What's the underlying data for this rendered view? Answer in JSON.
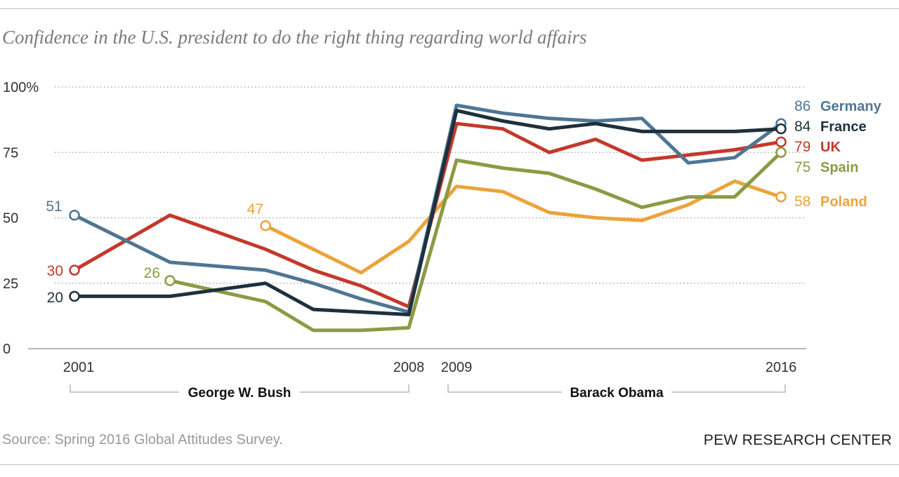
{
  "title": "Confidence in the U.S. president to do the right thing regarding world affairs",
  "source": "Source: Spring 2016 Global Attitudes Survey.",
  "brand": "PEW RESEARCH CENTER",
  "chart_data": {
    "type": "line",
    "title": "Confidence in the U.S. president to do the right thing regarding world affairs",
    "ylim": [
      0,
      100
    ],
    "yticks": [
      0,
      25,
      50,
      75,
      100
    ],
    "ytick_labels": [
      "0",
      "25",
      "50",
      "75",
      "100%"
    ],
    "x_tick_labels": [
      "2001",
      "2008",
      "2009",
      "2016"
    ],
    "grid": true,
    "x": [
      2001,
      2002,
      2003,
      2004,
      2005,
      2006,
      2007,
      2008,
      2009,
      2010,
      2011,
      2012,
      2013,
      2014,
      2015,
      2016
    ],
    "periods": [
      {
        "label": "George W. Bush",
        "start": 2001,
        "end": 2008
      },
      {
        "label": "Barack Obama",
        "start": 2009,
        "end": 2016
      }
    ],
    "series": [
      {
        "name": "Germany",
        "color": "#4f7693",
        "values": [
          51,
          null,
          33,
          null,
          30,
          25,
          19,
          14,
          93,
          90,
          88,
          87,
          88,
          71,
          73,
          86
        ],
        "start_label": "51",
        "end_label": "86"
      },
      {
        "name": "France",
        "color": "#1e303d",
        "values": [
          20,
          null,
          20,
          null,
          25,
          15,
          14,
          13,
          91,
          87,
          84,
          86,
          83,
          83,
          83,
          84
        ],
        "start_label": "20",
        "end_label": "84"
      },
      {
        "name": "UK",
        "color": "#c3392b",
        "values": [
          30,
          null,
          51,
          null,
          38,
          30,
          24,
          16,
          86,
          84,
          75,
          80,
          72,
          74,
          76,
          79
        ],
        "start_label": "30",
        "end_label": "79"
      },
      {
        "name": "Spain",
        "color": "#8c9a43",
        "values": [
          null,
          null,
          26,
          null,
          18,
          7,
          7,
          8,
          72,
          69,
          67,
          61,
          54,
          58,
          58,
          75
        ],
        "start_label": "26",
        "end_label": "75"
      },
      {
        "name": "Poland",
        "color": "#eca33a",
        "values": [
          null,
          null,
          null,
          null,
          47,
          null,
          29,
          41,
          62,
          60,
          52,
          50,
          49,
          55,
          64,
          58
        ],
        "start_label": "47",
        "end_label": "58"
      }
    ]
  }
}
